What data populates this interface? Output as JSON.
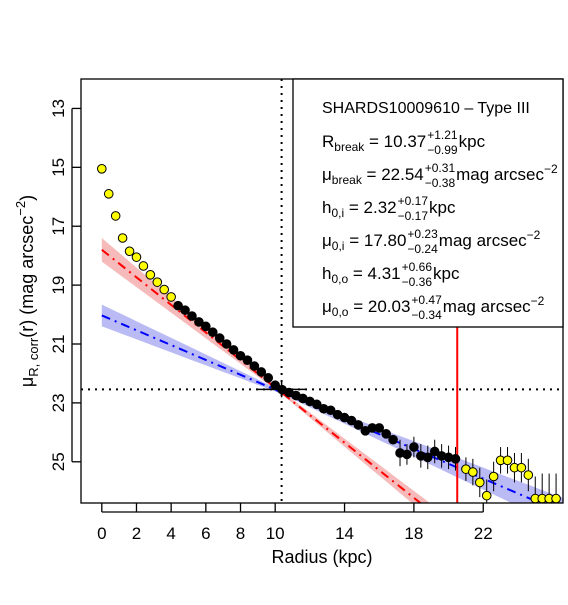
{
  "chart_data": {
    "type": "scatter",
    "xlabel": "Radius (kpc)",
    "ylabel_main": "μ",
    "ylabel_sub": "R, corr",
    "ylabel_tail": "(r) (mag arcsec",
    "ylabel_sup": "−2",
    "ylabel_close": ")",
    "xlim": [
      -1.2,
      26.6
    ],
    "ylim": [
      26.4,
      12.0
    ],
    "y_inverted": true,
    "x_ticks": [
      0,
      2,
      4,
      6,
      8,
      10,
      14,
      18,
      22
    ],
    "y_ticks": [
      13,
      15,
      17,
      19,
      21,
      23,
      25
    ],
    "legend": {
      "placement": "top-right",
      "title": "SHARDS10009610  –  Type III",
      "rows": [
        {
          "sym": "R",
          "sub": "break",
          "val": " = 10.37",
          "up": "+1.21",
          "lo": "−0.99",
          "unit": " kpc"
        },
        {
          "sym": "μ",
          "sub": "break",
          "val": " = 22.54",
          "up": "+0.31",
          "lo": "−0.38",
          "unit": " mag arcsec",
          "unit_sup": "−2"
        },
        {
          "sym": "h",
          "sub": "0,i",
          "val": " = 2.32",
          "up": "+0.17",
          "lo": "−0.17",
          "unit": " kpc"
        },
        {
          "sym": "μ",
          "sub": "0,i",
          "val": " = 17.80",
          "up": "+0.23",
          "lo": "−0.24",
          "unit": " mag arcsec",
          "unit_sup": "−2"
        },
        {
          "sym": "h",
          "sub": "0,o",
          "val": " = 4.31",
          "up": "+0.66",
          "lo": "−0.36",
          "unit": " kpc"
        },
        {
          "sym": "μ",
          "sub": "0,o",
          "val": " = 20.03",
          "up": "+0.47",
          "lo": "−0.34",
          "unit": " mag arcsec",
          "unit_sup": "−2"
        }
      ]
    },
    "break_radius": 10.37,
    "break_mu": 22.54,
    "limit_radius": 20.5,
    "inner_fit": {
      "mu0": 17.8,
      "h": 2.32,
      "x_range": [
        0,
        20.5
      ],
      "line_color": "#ff0000",
      "band_color": "#f4a3a3",
      "band_halfwidth": [
        0.35,
        0.25
      ]
    },
    "outer_fit": {
      "mu0": 20.03,
      "h": 4.31,
      "x_range": [
        0,
        26.6
      ],
      "line_color": "#0000ff",
      "band_color": "#a3a3f2",
      "band_halfwidth": [
        0.5,
        0.45
      ]
    },
    "series": [
      {
        "role": "excluded",
        "color": "#ffff00",
        "points": [
          {
            "x": 0.0,
            "y": 15.05
          },
          {
            "x": 0.4,
            "y": 15.9
          },
          {
            "x": 0.8,
            "y": 16.65
          },
          {
            "x": 1.2,
            "y": 17.4
          },
          {
            "x": 1.6,
            "y": 17.85
          },
          {
            "x": 2.0,
            "y": 18.05
          },
          {
            "x": 2.4,
            "y": 18.35
          },
          {
            "x": 2.8,
            "y": 18.65
          },
          {
            "x": 3.2,
            "y": 18.9
          },
          {
            "x": 3.6,
            "y": 19.15
          },
          {
            "x": 4.0,
            "y": 19.4
          },
          {
            "x": 21.0,
            "y": 25.25
          },
          {
            "x": 21.4,
            "y": 25.35
          },
          {
            "x": 21.8,
            "y": 25.7
          },
          {
            "x": 22.2,
            "y": 26.15
          },
          {
            "x": 22.6,
            "y": 25.5
          },
          {
            "x": 23.0,
            "y": 24.95
          },
          {
            "x": 23.4,
            "y": 24.95
          },
          {
            "x": 23.8,
            "y": 25.2
          },
          {
            "x": 24.2,
            "y": 25.2
          },
          {
            "x": 24.6,
            "y": 25.45
          },
          {
            "x": 25.0,
            "y": 26.25
          },
          {
            "x": 25.4,
            "y": 26.25
          },
          {
            "x": 25.8,
            "y": 26.25
          },
          {
            "x": 26.2,
            "y": 26.25
          }
        ]
      },
      {
        "role": "fitted",
        "color": "#000000",
        "points": [
          {
            "x": 4.4,
            "y": 19.7
          },
          {
            "x": 4.8,
            "y": 19.85
          },
          {
            "x": 5.2,
            "y": 20.05
          },
          {
            "x": 5.6,
            "y": 20.25
          },
          {
            "x": 6.0,
            "y": 20.4
          },
          {
            "x": 6.4,
            "y": 20.6
          },
          {
            "x": 6.8,
            "y": 20.8
          },
          {
            "x": 7.2,
            "y": 21.0
          },
          {
            "x": 7.6,
            "y": 21.2
          },
          {
            "x": 8.0,
            "y": 21.4
          },
          {
            "x": 8.4,
            "y": 21.55
          },
          {
            "x": 8.8,
            "y": 21.75
          },
          {
            "x": 9.2,
            "y": 21.95
          },
          {
            "x": 9.6,
            "y": 22.15
          },
          {
            "x": 10.0,
            "y": 22.4
          },
          {
            "x": 10.4,
            "y": 22.55
          },
          {
            "x": 10.8,
            "y": 22.65
          },
          {
            "x": 11.2,
            "y": 22.75
          },
          {
            "x": 11.6,
            "y": 22.85
          },
          {
            "x": 12.0,
            "y": 22.95
          },
          {
            "x": 12.4,
            "y": 23.05
          },
          {
            "x": 12.8,
            "y": 23.2
          },
          {
            "x": 13.2,
            "y": 23.25
          },
          {
            "x": 13.6,
            "y": 23.4
          },
          {
            "x": 14.0,
            "y": 23.5
          },
          {
            "x": 14.4,
            "y": 23.6
          },
          {
            "x": 14.8,
            "y": 23.75
          },
          {
            "x": 15.2,
            "y": 23.95
          },
          {
            "x": 15.6,
            "y": 23.85
          },
          {
            "x": 16.0,
            "y": 23.85
          },
          {
            "x": 16.4,
            "y": 24.05
          },
          {
            "x": 16.8,
            "y": 24.25
          },
          {
            "x": 17.2,
            "y": 24.7
          },
          {
            "x": 17.6,
            "y": 24.75
          },
          {
            "x": 18.0,
            "y": 24.5
          },
          {
            "x": 18.4,
            "y": 24.8
          },
          {
            "x": 18.8,
            "y": 24.85
          },
          {
            "x": 19.2,
            "y": 24.65
          },
          {
            "x": 19.6,
            "y": 24.8
          },
          {
            "x": 20.0,
            "y": 24.85
          },
          {
            "x": 20.4,
            "y": 24.9
          }
        ]
      }
    ],
    "error_bars": [
      {
        "x": 17.2,
        "lo": 24.25,
        "hi": 25.15
      },
      {
        "x": 17.6,
        "lo": 24.4,
        "hi": 25.1
      },
      {
        "x": 18.0,
        "lo": 24.15,
        "hi": 24.85
      },
      {
        "x": 18.4,
        "lo": 24.4,
        "hi": 25.2
      },
      {
        "x": 18.8,
        "lo": 24.45,
        "hi": 25.25
      },
      {
        "x": 19.2,
        "lo": 24.25,
        "hi": 25.05
      },
      {
        "x": 19.6,
        "lo": 24.4,
        "hi": 25.2
      },
      {
        "x": 20.0,
        "lo": 24.45,
        "hi": 25.25
      },
      {
        "x": 20.4,
        "lo": 24.5,
        "hi": 25.3
      },
      {
        "x": 21.0,
        "lo": 24.85,
        "hi": 25.65
      },
      {
        "x": 21.4,
        "lo": 24.9,
        "hi": 25.8
      },
      {
        "x": 21.8,
        "lo": 25.2,
        "hi": 26.2
      },
      {
        "x": 22.2,
        "lo": 25.6,
        "hi": 26.4
      },
      {
        "x": 22.6,
        "lo": 25.0,
        "hi": 26.0
      },
      {
        "x": 23.0,
        "lo": 24.5,
        "hi": 25.4
      },
      {
        "x": 23.4,
        "lo": 24.5,
        "hi": 25.4
      },
      {
        "x": 23.8,
        "lo": 24.7,
        "hi": 25.7
      },
      {
        "x": 24.2,
        "lo": 24.7,
        "hi": 25.7
      },
      {
        "x": 24.6,
        "lo": 24.9,
        "hi": 26.0
      },
      {
        "x": 25.0,
        "lo": 25.5,
        "hi": 26.4
      },
      {
        "x": 25.4,
        "lo": 25.4,
        "hi": 26.4
      },
      {
        "x": 25.8,
        "lo": 25.4,
        "hi": 26.4
      },
      {
        "x": 26.2,
        "lo": 25.4,
        "hi": 26.4
      }
    ]
  }
}
